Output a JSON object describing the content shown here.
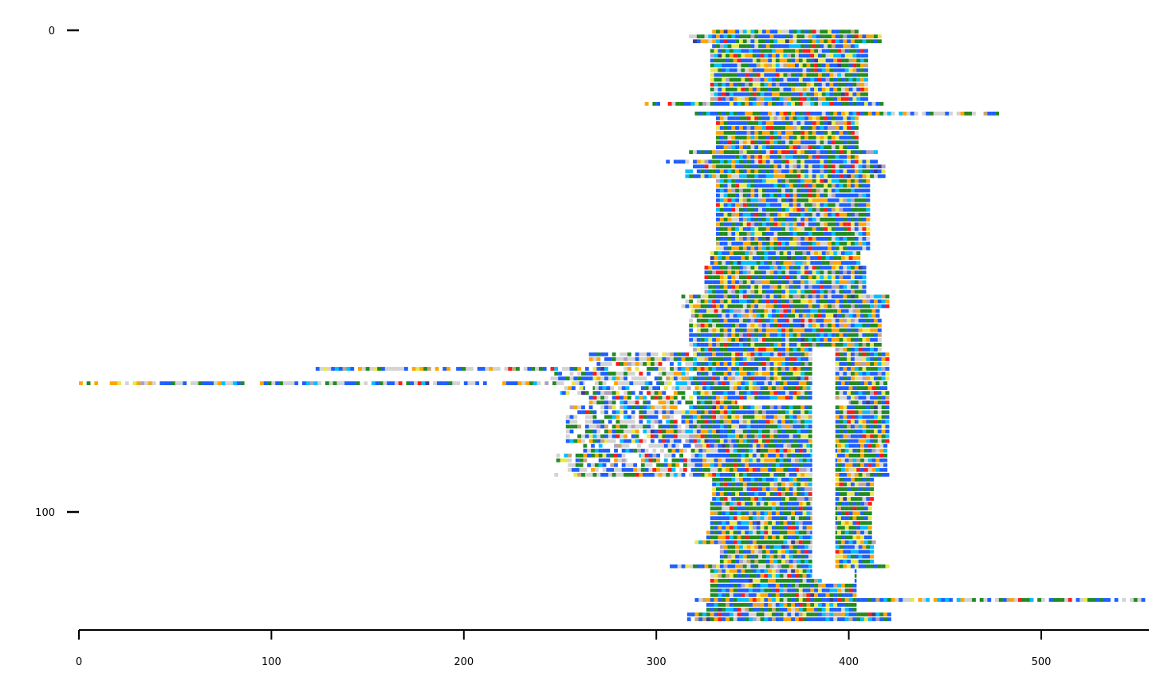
{
  "chart_data": {
    "type": "heatmap",
    "title": "",
    "xlabel": "",
    "ylabel": "",
    "xlim": [
      0,
      556
    ],
    "ylim": [
      0,
      125
    ],
    "y_inverted": true,
    "grid": false,
    "legend": "none",
    "x_ticks": [
      "0",
      "100",
      "200",
      "300",
      "400",
      "500"
    ],
    "y_ticks": [
      "0",
      "100"
    ],
    "x_tick_values": [
      0,
      100,
      200,
      300,
      400,
      500
    ],
    "y_tick_values": [
      0,
      100
    ],
    "palette": [
      "#1f5fff",
      "#228b22",
      "#ffa500",
      "#00bfff",
      "#e8e84a",
      "#d3d3d3",
      "#ff1a1a",
      "#b0a0c0",
      "#c6a574",
      "#3c3c8c"
    ],
    "blocks": [
      {
        "rows": [
          0,
          1
        ],
        "x": [
          329,
          405
        ]
      },
      {
        "rows": [
          1,
          3
        ],
        "x": [
          317,
          417
        ]
      },
      {
        "rows": [
          3,
          4
        ],
        "x": [
          329,
          405
        ]
      },
      {
        "rows": [
          4,
          15
        ],
        "x": [
          328,
          409
        ]
      },
      {
        "rows": [
          15,
          16
        ],
        "x": [
          294,
          418
        ]
      },
      {
        "rows": [
          17,
          18
        ],
        "x": [
          320,
          477
        ]
      },
      {
        "rows": [
          18,
          25
        ],
        "x": [
          331,
          404
        ]
      },
      {
        "rows": [
          25,
          26
        ],
        "x": [
          313,
          415
        ]
      },
      {
        "rows": [
          26,
          27
        ],
        "x": [
          329,
          405
        ]
      },
      {
        "rows": [
          27,
          28
        ],
        "x": [
          305,
          415
        ]
      },
      {
        "rows": [
          28,
          31
        ],
        "x": [
          315,
          419
        ]
      },
      {
        "rows": [
          31,
          46
        ],
        "x": [
          331,
          410
        ]
      },
      {
        "rows": [
          46,
          49
        ],
        "x": [
          328,
          406
        ]
      },
      {
        "rows": [
          49,
          55
        ],
        "x": [
          325,
          408
        ]
      },
      {
        "rows": [
          55,
          58
        ],
        "x": [
          313,
          421
        ]
      },
      {
        "rows": [
          58,
          60
        ],
        "x": [
          318,
          415
        ]
      },
      {
        "rows": [
          60,
          67
        ],
        "x": [
          317,
          416
        ]
      },
      {
        "rows": [
          67,
          70
        ],
        "x": [
          265,
          420
        ]
      },
      {
        "rows": [
          70,
          71
        ],
        "x": [
          123,
          420
        ]
      },
      {
        "rows": [
          71,
          73
        ],
        "x": [
          245,
          420
        ]
      },
      {
        "rows": [
          73,
          74
        ],
        "x": [
          0,
          420
        ]
      },
      {
        "rows": [
          74,
          75
        ],
        "x": [
          252,
          420
        ]
      },
      {
        "rows": [
          75,
          76
        ],
        "x": [
          245,
          420
        ]
      },
      {
        "rows": [
          76,
          78
        ],
        "x": [
          265,
          420
        ]
      },
      {
        "rows": [
          78,
          86
        ],
        "x": [
          253,
          420
        ]
      },
      {
        "rows": [
          86,
          88
        ],
        "x": [
          262,
          420
        ]
      },
      {
        "rows": [
          88,
          90
        ],
        "x": [
          248,
          420
        ]
      },
      {
        "rows": [
          90,
          92
        ],
        "x": [
          254,
          420
        ]
      },
      {
        "rows": [
          92,
          93
        ],
        "x": [
          245,
          420
        ]
      },
      {
        "rows": [
          93,
          98
        ],
        "x": [
          329,
          412
        ]
      },
      {
        "rows": [
          98,
          104
        ],
        "x": [
          328,
          412
        ]
      },
      {
        "rows": [
          104,
          106
        ],
        "x": [
          326,
          412
        ]
      },
      {
        "rows": [
          106,
          107
        ],
        "x": [
          320,
          414
        ]
      },
      {
        "rows": [
          107,
          111
        ],
        "x": [
          333,
          412
        ]
      },
      {
        "rows": [
          111,
          112
        ],
        "x": [
          307,
          420
        ]
      },
      {
        "rows": [
          112,
          118
        ],
        "x": [
          328,
          404
        ]
      },
      {
        "rows": [
          118,
          119
        ],
        "x": [
          320,
          556
        ]
      },
      {
        "rows": [
          119,
          121
        ],
        "x": [
          326,
          404
        ]
      },
      {
        "rows": [
          121,
          123
        ],
        "x": [
          316,
          422
        ]
      }
    ],
    "white_gaps": [
      {
        "rows": [
          66,
          114
        ],
        "x": [
          381,
          393
        ]
      },
      {
        "rows": [
          70,
          71
        ],
        "x": [
          194,
          196
        ]
      },
      {
        "rows": [
          73,
          74
        ],
        "x": [
          212,
          219
        ]
      },
      {
        "rows": [
          73,
          75
        ],
        "x": [
          263,
          267
        ]
      },
      {
        "rows": [
          75,
          76
        ],
        "x": [
          238,
          250
        ]
      },
      {
        "rows": [
          77,
          78
        ],
        "x": [
          342,
          400
        ]
      },
      {
        "rows": [
          88,
          90
        ],
        "x": [
          285,
          291
        ]
      },
      {
        "rows": [
          112,
          115
        ],
        "x": [
          386,
          403
        ]
      }
    ]
  }
}
